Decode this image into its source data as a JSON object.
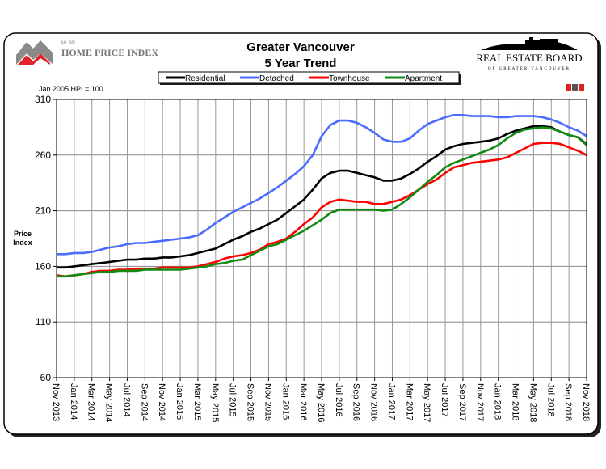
{
  "header": {
    "left_logo_small": "MLS®",
    "left_logo": "HOME PRICE INDEX",
    "right_logo_main": "REAL ESTATE BOARD",
    "right_logo_sub": "OF GREATER VANCOUVER",
    "mls_badge": "MLS"
  },
  "chart_data": {
    "type": "line",
    "title": "Greater Vancouver",
    "subtitle": "5 Year Trend",
    "note": "Jan 2005 HPI = 100",
    "ylabel": "Price Index",
    "xlabel": "",
    "ylim": [
      60,
      310
    ],
    "yticks": [
      60,
      110,
      160,
      210,
      260,
      310
    ],
    "grid": true,
    "legend_position": "top-center",
    "xtick_labels": [
      "Nov 2013",
      "Jan 2014",
      "Mar 2014",
      "May 2014",
      "Jul 2014",
      "Sep 2014",
      "Nov 2014",
      "Jan 2015",
      "Mar 2015",
      "May 2015",
      "Jul 2015",
      "Sep 2015",
      "Nov 2015",
      "Jan 2016",
      "Mar 2016",
      "May 2016",
      "Jul 2016",
      "Sep 2016",
      "Nov 2016",
      "Jan 2017",
      "Mar 2017",
      "May 2017",
      "Jul 2017",
      "Sep 2017",
      "Nov 2017",
      "Jan 2018",
      "Mar 2018",
      "May 2018",
      "Jul 2018",
      "Sep 2018",
      "Nov 2018"
    ],
    "x_start": "Nov 2013",
    "x_end": "Nov 2018",
    "x_frequency": "monthly",
    "series": [
      {
        "name": "Residential",
        "color": "#000000",
        "values": [
          159,
          159,
          160,
          161,
          162,
          163,
          164,
          165,
          166,
          166,
          167,
          167,
          168,
          168,
          169,
          170,
          172,
          174,
          176,
          180,
          184,
          187,
          191,
          194,
          198,
          202,
          208,
          214,
          220,
          229,
          239,
          244,
          246,
          246,
          244,
          242,
          240,
          237,
          237,
          239,
          243,
          248,
          254,
          259,
          265,
          268,
          270,
          271,
          272,
          273,
          275,
          279,
          282,
          284,
          286,
          286,
          285,
          281,
          278,
          276,
          270
        ]
      },
      {
        "name": "Detached",
        "color": "#4a6cff",
        "values": [
          171,
          171,
          172,
          172,
          173,
          175,
          177,
          178,
          180,
          181,
          181,
          182,
          183,
          184,
          185,
          186,
          188,
          193,
          199,
          204,
          209,
          213,
          217,
          221,
          226,
          231,
          237,
          243,
          250,
          260,
          277,
          287,
          291,
          291,
          289,
          285,
          280,
          274,
          272,
          272,
          275,
          282,
          288,
          291,
          294,
          296,
          296,
          295,
          295,
          295,
          294,
          294,
          295,
          295,
          295,
          294,
          292,
          289,
          285,
          282,
          277
        ]
      },
      {
        "name": "Townhouse",
        "color": "#ff0000",
        "values": [
          152,
          151,
          152,
          153,
          155,
          156,
          156,
          157,
          157,
          158,
          158,
          158,
          159,
          159,
          159,
          159,
          160,
          162,
          164,
          167,
          169,
          170,
          172,
          175,
          180,
          182,
          185,
          191,
          198,
          204,
          213,
          218,
          220,
          219,
          218,
          218,
          216,
          216,
          218,
          220,
          224,
          229,
          234,
          238,
          244,
          249,
          251,
          253,
          254,
          255,
          256,
          258,
          262,
          266,
          270,
          271,
          271,
          270,
          267,
          264,
          260
        ]
      },
      {
        "name": "Apartment",
        "color": "#138a13",
        "values": [
          151,
          151,
          152,
          153,
          154,
          155,
          155,
          156,
          156,
          156,
          157,
          157,
          157,
          157,
          157,
          158,
          159,
          160,
          162,
          163,
          165,
          166,
          170,
          174,
          178,
          180,
          184,
          188,
          192,
          197,
          202,
          208,
          211,
          211,
          211,
          211,
          211,
          210,
          211,
          216,
          222,
          229,
          236,
          242,
          249,
          253,
          256,
          259,
          262,
          265,
          269,
          275,
          280,
          283,
          284,
          285,
          284,
          281,
          278,
          276,
          269
        ]
      }
    ]
  }
}
